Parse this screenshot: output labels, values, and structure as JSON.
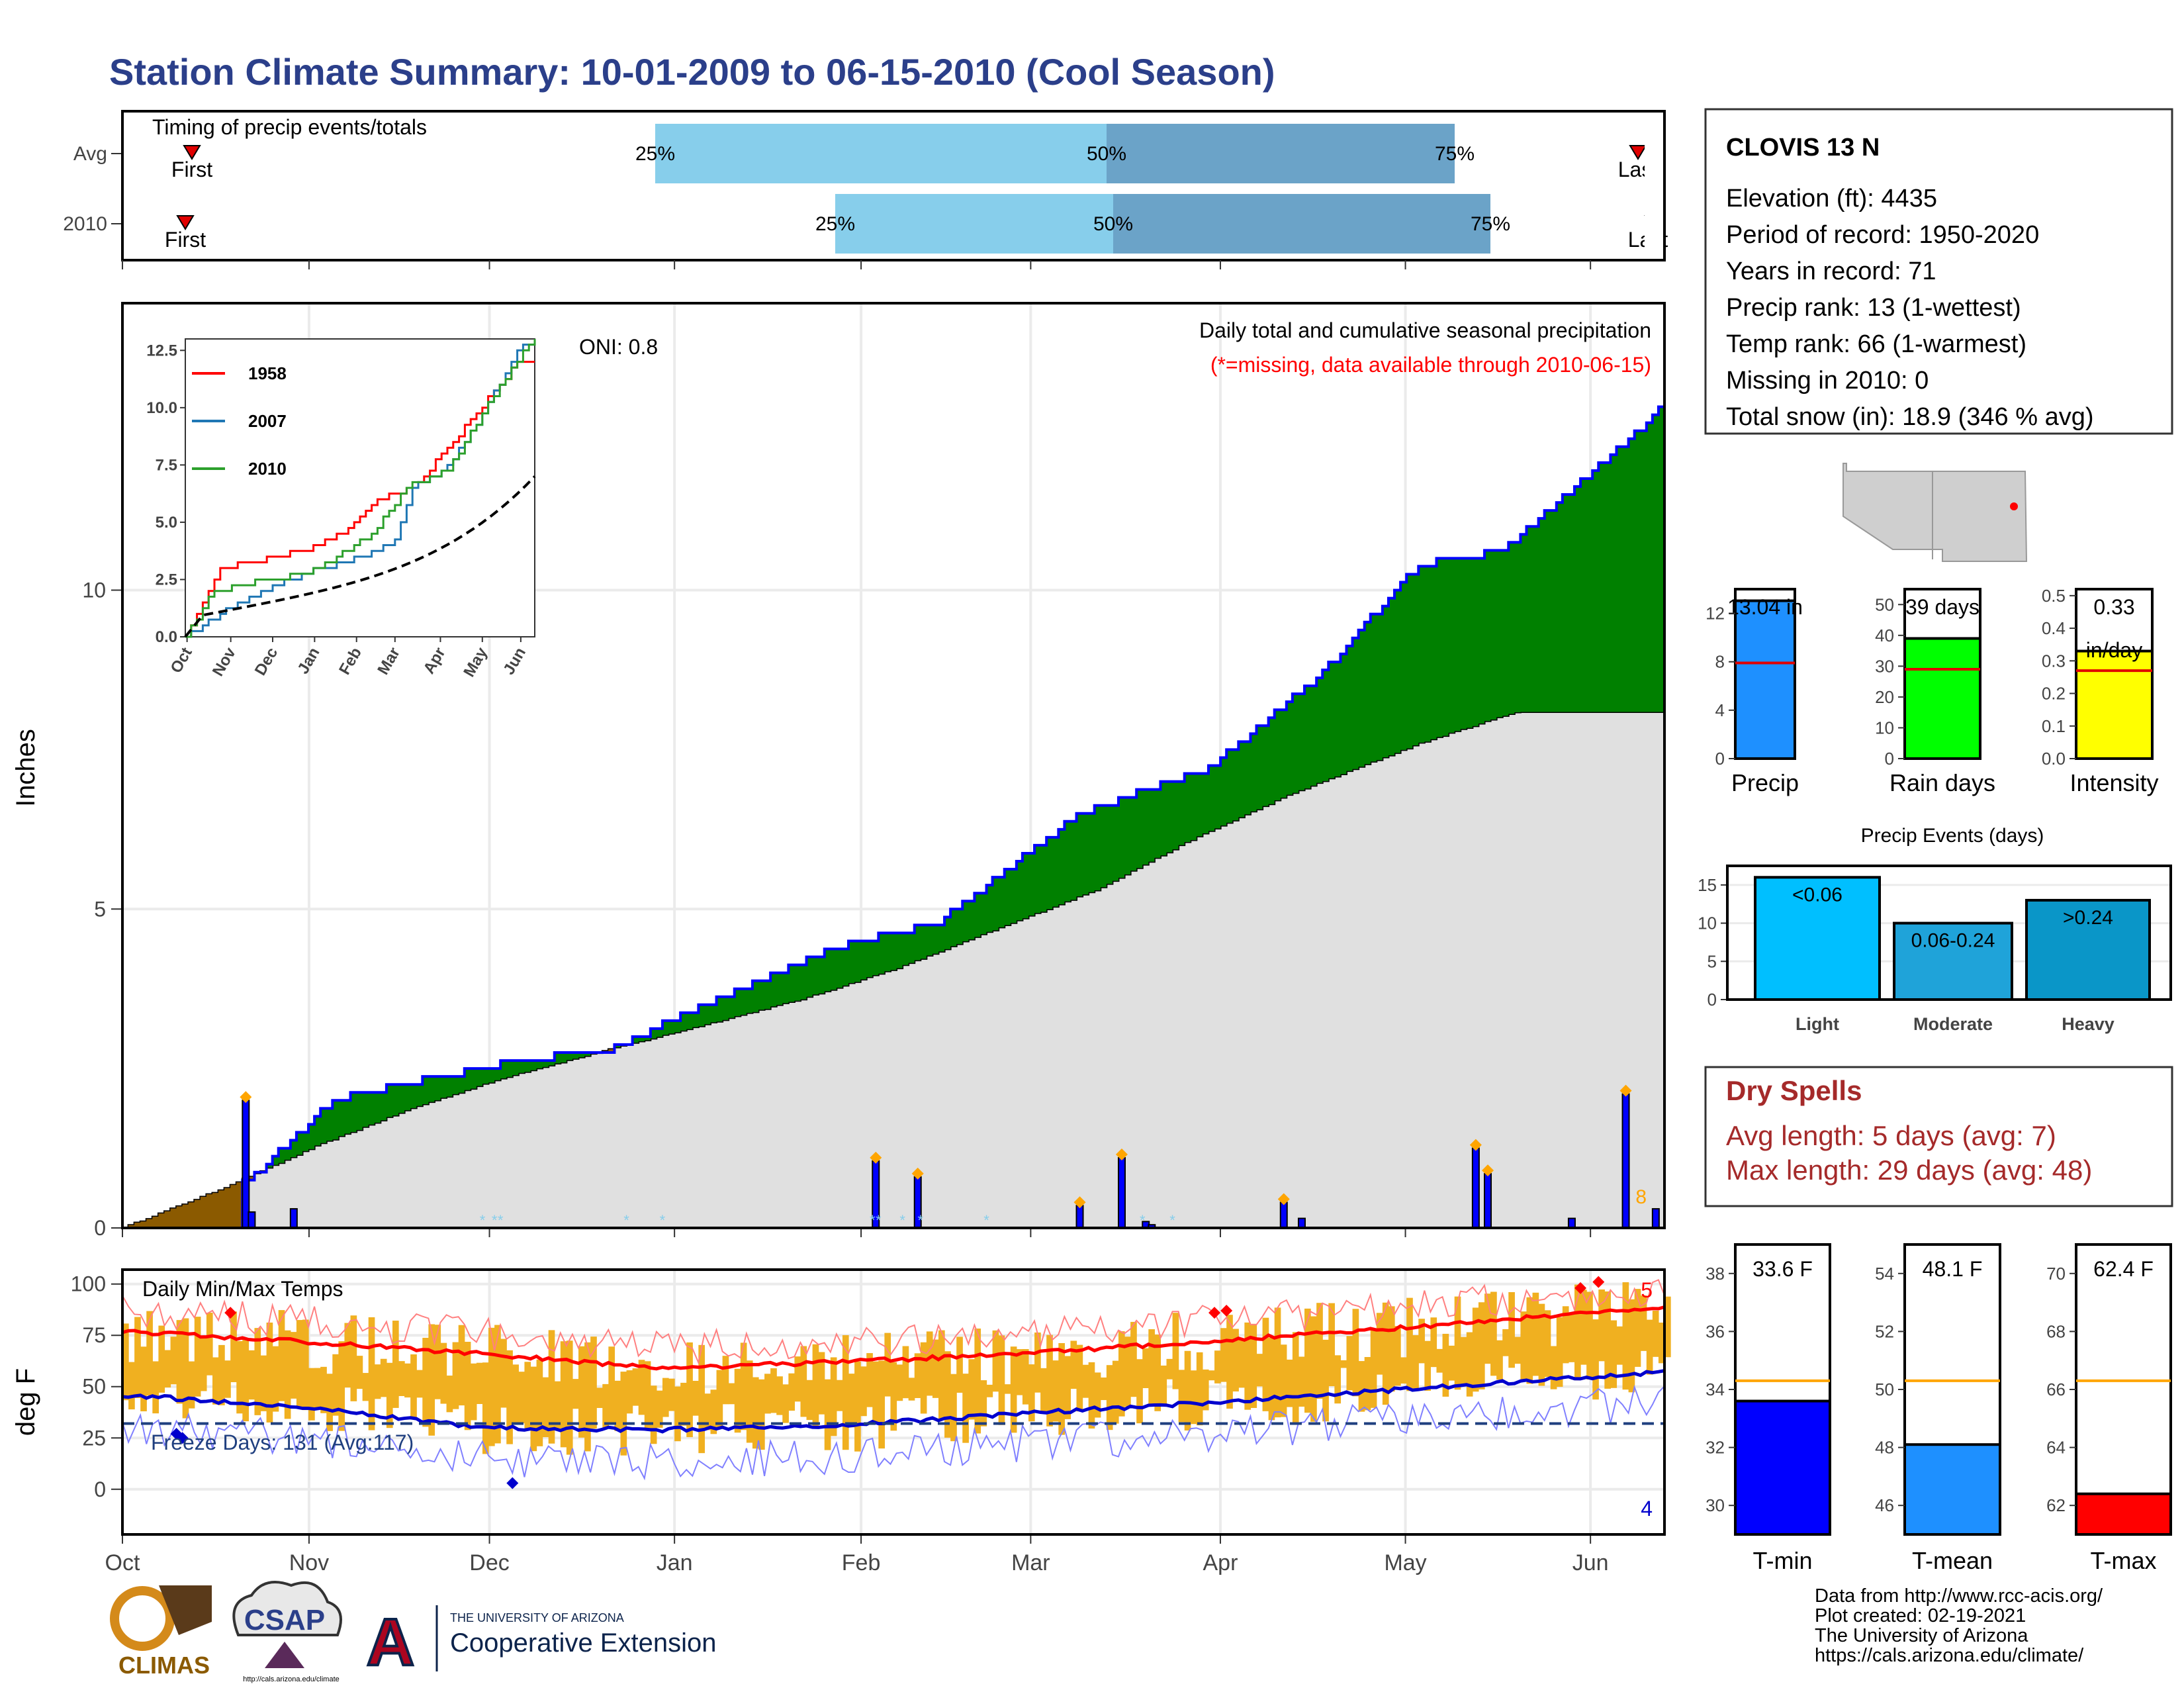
{
  "title": "Station Climate Summary: 10-01-2009 to 06-15-2010 (Cool Season)",
  "colors": {
    "title": "#2b3f8a",
    "precip_surplus": "#008000",
    "precip_line": "#0000ff",
    "deficit": "#8b5a00",
    "climo_fill": "#e0e0e0",
    "temp_bar": "#f0b020",
    "tmax": "#ff0000",
    "tmin": "#0000cd",
    "timing_light": "#87ceeb",
    "timing_dark": "#6ba3c8"
  },
  "timing": {
    "title": "Timing of precip events/totals",
    "rows": [
      {
        "label": "Avg",
        "first_label": "First",
        "last_label": "Last",
        "p25": "25%",
        "p50": "50%",
        "p75": "75%"
      },
      {
        "label": "2010",
        "first_label": "First",
        "last_label": "Last",
        "p25": "25%",
        "p50": "50%",
        "p75": "75%"
      }
    ]
  },
  "precip_panel": {
    "ylabel": "Inches",
    "title": "Daily total and cumulative seasonal precipitation",
    "note": "(*=missing, data available through 2010-06-15)",
    "oni": "ONI: 0.8",
    "yticks": [
      "0",
      "5",
      "10"
    ],
    "corner_count": "8"
  },
  "inset": {
    "legend": [
      {
        "name": "1958",
        "color": "#ff0000"
      },
      {
        "name": "2007",
        "color": "#1f77b4"
      },
      {
        "name": "2010",
        "color": "#2ca02c"
      }
    ],
    "yticks": [
      "0.0",
      "2.5",
      "5.0",
      "7.5",
      "10.0",
      "12.5"
    ],
    "xticks": [
      "Oct",
      "Nov",
      "Dec",
      "Jan",
      "Feb",
      "Mar",
      "Apr",
      "May",
      "Jun"
    ]
  },
  "temp_panel": {
    "ylabel": "deg F",
    "title": "Daily Min/Max Temps",
    "freeze": "Freeze Days: 131 (Avg:117)",
    "yticks": [
      "0",
      "25",
      "50",
      "75",
      "100"
    ],
    "max_count": "5",
    "min_count": "4"
  },
  "months": [
    "Oct",
    "Nov",
    "Dec",
    "Jan",
    "Feb",
    "Mar",
    "Apr",
    "May",
    "Jun"
  ],
  "station": {
    "name": "CLOVIS 13 N",
    "lines": [
      "Elevation (ft): 4435",
      "Period of record: 1950-2020",
      "Years in record: 71",
      "Precip rank: 13 (1-wettest)",
      "Temp rank: 66 (1-warmest)",
      "Missing in 2010: 0",
      "Total snow (in): 18.9 (346 % avg)"
    ]
  },
  "mini_bars": [
    {
      "label": "Precip",
      "value_text": "13.04 in",
      "yticks": [
        "0",
        "4",
        "8",
        "12"
      ],
      "ymax": 14,
      "value": 13.04,
      "avg": 7.9,
      "color": "#1e90ff"
    },
    {
      "label": "Rain days",
      "value_text": "39 days",
      "yticks": [
        "0",
        "10",
        "20",
        "30",
        "40",
        "50"
      ],
      "ymax": 55,
      "value": 39,
      "avg": 29,
      "color": "#00ff00"
    },
    {
      "label": "Intensity",
      "value_text": "0.33",
      "value_text2": "in/day",
      "yticks": [
        "0.0",
        "0.1",
        "0.2",
        "0.3",
        "0.4",
        "0.5"
      ],
      "ymax": 0.52,
      "value": 0.33,
      "avg": 0.27,
      "color": "#ffff00"
    }
  ],
  "events": {
    "title": "Precip Events (days)",
    "yticks": [
      "0",
      "5",
      "10",
      "15"
    ],
    "bars": [
      {
        "label": "Light",
        "text": "<0.06",
        "value": 16,
        "color": "#00bfff"
      },
      {
        "label": "Moderate",
        "text": "0.06-0.24",
        "value": 10,
        "color": "#1fa3d9"
      },
      {
        "label": "Heavy",
        "text": ">0.24",
        "value": 13,
        "color": "#0a96c8"
      }
    ]
  },
  "dry_spells": {
    "title": "Dry Spells",
    "avg": "Avg length: 5 days (avg: 7)",
    "max": "Max length: 29 days (avg: 48)"
  },
  "temp_bars": [
    {
      "label": "T-min",
      "value_text": "33.6 F",
      "yticks": [
        "30",
        "32",
        "34",
        "36",
        "38"
      ],
      "ymin": 29,
      "ymax": 39,
      "value": 33.6,
      "avg": 34.3,
      "color": "#0000ff"
    },
    {
      "label": "T-mean",
      "value_text": "48.1 F",
      "yticks": [
        "46",
        "48",
        "50",
        "52",
        "54"
      ],
      "ymin": 45,
      "ymax": 55,
      "value": 48.1,
      "avg": 50.3,
      "color": "#1e90ff"
    },
    {
      "label": "T-max",
      "value_text": "62.4 F",
      "yticks": [
        "62",
        "64",
        "66",
        "68",
        "70"
      ],
      "ymin": 61,
      "ymax": 71,
      "value": 62.4,
      "avg": 66.3,
      "color": "#ff0000"
    }
  ],
  "credits": [
    "Data from http://www.rcc-acis.org/",
    "Plot created: 02-19-2021",
    "The University of Arizona",
    "https://cals.arizona.edu/climate/"
  ],
  "logos": {
    "climas": "CLIMAS",
    "csap": "CSAP",
    "csap_url": "http://cals.arizona.edu/climate",
    "ua_small": "THE UNIVERSITY OF ARIZONA",
    "ua_big": "Cooperative Extension",
    "ua_letter": "A"
  },
  "chart_data": [
    {
      "type": "area",
      "title": "Daily total and cumulative seasonal precipitation",
      "ylabel": "Inches",
      "ylim": [
        0,
        14.5
      ],
      "x": [
        "Oct",
        "Nov",
        "Dec",
        "Jan",
        "Feb",
        "Mar",
        "Apr",
        "May",
        "Jun"
      ],
      "series": [
        {
          "name": "2010",
          "points": [
            [
              0,
              0
            ],
            [
              20,
              0.05
            ],
            [
              40,
              0.8
            ],
            [
              65,
              2.0
            ],
            [
              90,
              2.3
            ],
            [
              120,
              2.6
            ],
            [
              150,
              2.8
            ],
            [
              195,
              3.85
            ],
            [
              220,
              4.4
            ],
            [
              252,
              4.8
            ],
            [
              295,
              6.5
            ],
            [
              335,
              7.2
            ],
            [
              370,
              8.7
            ],
            [
              400,
              10.4
            ],
            [
              425,
              10.6
            ],
            [
              474,
              12.8
            ],
            [
              476,
              13.04
            ]
          ]
        },
        {
          "points": [
            [
              0,
              0
            ],
            [
              30,
              0.6
            ],
            [
              60,
              1.3
            ],
            [
              90,
              1.9
            ],
            [
              120,
              2.4
            ],
            [
              150,
              2.8
            ],
            [
              180,
              3.2
            ],
            [
              210,
              3.6
            ],
            [
              240,
              4.1
            ],
            [
              270,
              4.7
            ],
            [
              300,
              5.3
            ],
            [
              330,
              6.1
            ],
            [
              360,
              6.8
            ],
            [
              400,
              7.6
            ],
            [
              430,
              8.1
            ],
            [
              476,
              7.9
            ]
          ]
        }
      ]
    },
    {
      "type": "line",
      "title": "Daily Min/Max Temps",
      "ylabel": "deg F",
      "ylim": [
        -20,
        105
      ],
      "x": [
        "Oct",
        "Nov",
        "Dec",
        "Jan",
        "Feb",
        "Mar",
        "Apr",
        "May",
        "Jun"
      ],
      "series": [
        {
          "points": [
            [
              0,
              77
            ],
            [
              30,
              72
            ],
            [
              60,
              66
            ],
            [
              90,
              59
            ],
            [
              120,
              62
            ],
            [
              150,
              66
            ],
            [
              180,
              72
            ],
            [
              210,
              78
            ],
            [
              240,
              85
            ],
            [
              258,
              88
            ]
          ]
        },
        {
          "points": [
            [
              0,
              46
            ],
            [
              30,
              40
            ],
            [
              60,
              30
            ],
            [
              90,
              29
            ],
            [
              120,
              31
            ],
            [
              150,
              37
            ],
            [
              180,
              42
            ],
            [
              210,
              48
            ],
            [
              240,
              54
            ],
            [
              258,
              57
            ]
          ]
        }
      ]
    }
  ]
}
